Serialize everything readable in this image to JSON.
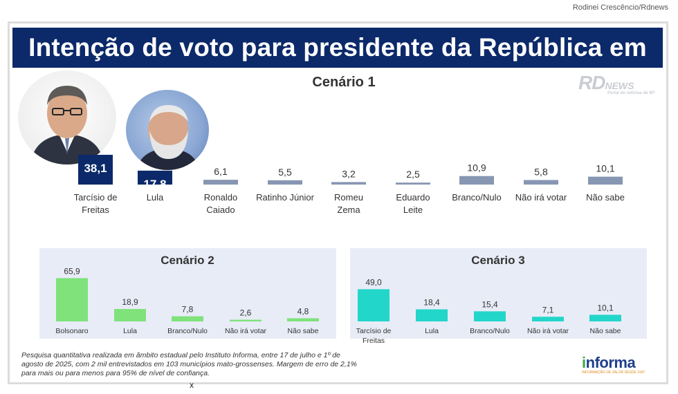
{
  "credit": "Rodinei Crescêncio/Rdnews",
  "banner_title": "Intenção de voto para presidente da República em MT",
  "watermark": {
    "brand": "RD",
    "word": "NEWS",
    "tagline": "Portal de notícias de MT"
  },
  "photos": {
    "photo1": "candidate-photo-tarcisio",
    "photo2": "candidate-photo-lula"
  },
  "colors": {
    "banner": "#0c2a6a",
    "c1_lead": "#0c2a6a",
    "c1_other": "#8796b2",
    "c2": "#7fe27a",
    "c3": "#22d6c9",
    "panel_bg": "#e8ecf7"
  },
  "chart_data": [
    {
      "type": "bar",
      "title": "Cenário 1",
      "categories": [
        "Tarcísio de Freitas",
        "Lula",
        "Ronaldo Caiado",
        "Ratinho Júnior",
        "Romeu Zema",
        "Eduardo Leite",
        "Branco/Nulo",
        "Não irá votar",
        "Não sabe"
      ],
      "labels": [
        [
          "Tarcísio de",
          "Freitas"
        ],
        [
          "Lula"
        ],
        [
          "Ronaldo",
          "Caiado"
        ],
        [
          "Ratinho Júnior"
        ],
        [
          "Romeu",
          "Zema"
        ],
        [
          "Eduardo",
          "Leite"
        ],
        [
          "Branco/Nulo"
        ],
        [
          "Não irá votar"
        ],
        [
          "Não sabe"
        ]
      ],
      "values": [
        38.1,
        17.8,
        6.1,
        5.5,
        3.2,
        2.5,
        10.9,
        5.8,
        10.1
      ],
      "value_labels": [
        "38,1",
        "17,8",
        "6,1",
        "5,5",
        "3,2",
        "2,5",
        "10,9",
        "5,8",
        "10,1"
      ]
    },
    {
      "type": "bar",
      "title": "Cenário 2",
      "categories": [
        "Bolsonaro",
        "Lula",
        "Branco/Nulo",
        "Não irá votar",
        "Não sabe"
      ],
      "labels": [
        [
          "Bolsonaro"
        ],
        [
          "Lula"
        ],
        [
          "Branco/Nulo"
        ],
        [
          "Não irá votar"
        ],
        [
          "Não sabe"
        ]
      ],
      "values": [
        65.9,
        18.9,
        7.8,
        2.6,
        4.8
      ],
      "value_labels": [
        "65,9",
        "18,9",
        "7,8",
        "2,6",
        "4,8"
      ]
    },
    {
      "type": "bar",
      "title": "Cenário 3",
      "categories": [
        "Tarcísio de Freitas",
        "Lula",
        "Branco/Nulo",
        "Não irá votar",
        "Não sabe"
      ],
      "labels": [
        [
          "Tarcísio de",
          "Freitas"
        ],
        [
          "Lula"
        ],
        [
          "Branco/Nulo"
        ],
        [
          "Não irá votar"
        ],
        [
          "Não sabe"
        ]
      ],
      "values": [
        49.0,
        18.4,
        15.4,
        7.1,
        10.1
      ],
      "value_labels": [
        "49,0",
        "18,4",
        "15,4",
        "7,1",
        "10,1"
      ]
    }
  ],
  "footnote": "Pesquisa quantitativa realizada em âmbito estadual pelo Instituto Informa, entre 17 de julho e 1º de agosto de 2025, com 2 mil entrevistados em 103 municípios mato-grossenses. Margem de erro de 2,1% para mais ou para menos para 95% de nível de confiança.",
  "informa_logo": {
    "initial": "i",
    "rest": "nforma",
    "slogan": "INFORMAÇÃO DE VALOR DESDE 1997"
  },
  "bottom_mark": "x"
}
